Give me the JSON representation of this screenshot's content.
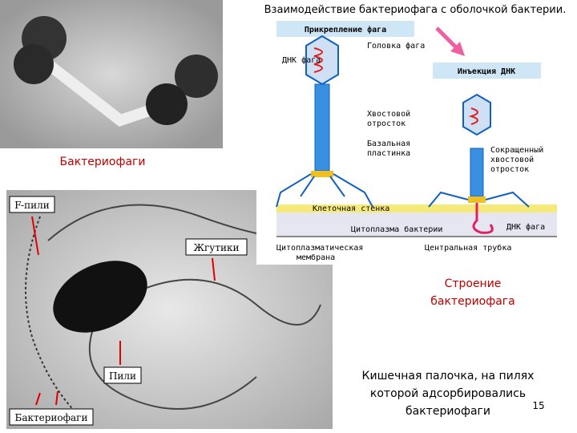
{
  "photo_top": {
    "caption": "Бактериофаги"
  },
  "diagram": {
    "title": "Взаимодействие бактериофага с оболочкой бактерии.",
    "stage_attach": "Прикрепление фага",
    "stage_inject": "Инъекция ДНК",
    "head": "Головка фага",
    "dna_top": "ДНК фага",
    "tail": [
      "Хвостовой",
      "отросток"
    ],
    "baseplate": [
      "Базальная",
      "пластинка"
    ],
    "contracted_tail": [
      "Сокращенный",
      "хвостовой",
      "отросток"
    ],
    "cell_wall": "Клеточная стенка",
    "cytoplasm": "Цитоплазма бактерии",
    "dna_bottom": "ДНК фага",
    "membrane": [
      "Цитоплазматическая",
      "мембрана"
    ],
    "central_tube": "Центральная трубка"
  },
  "photo_bottom": {
    "f_pili": "F-пили",
    "flagella": "Жгутики",
    "pili": "Пили",
    "phages": "Бактериофаги"
  },
  "structure_caption": [
    "Строение",
    "бактериофага"
  ],
  "ecoli_caption": [
    "Кишечная палочка, на пилях",
    "которой адсорбировались",
    "бактериофаги"
  ],
  "page_number": "15"
}
